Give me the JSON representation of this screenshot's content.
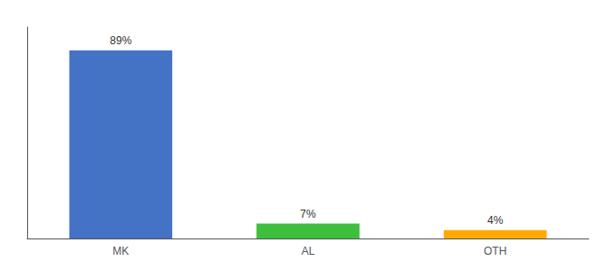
{
  "chart_data": {
    "type": "bar",
    "categories": [
      "MK",
      "AL",
      "OTH"
    ],
    "values": [
      89,
      7,
      4
    ],
    "value_labels": [
      "89%",
      "7%",
      "4%"
    ],
    "colors": [
      "#4472c4",
      "#3dbf3d",
      "#ffaa00"
    ],
    "ylim": [
      0,
      100
    ],
    "grid": false,
    "data_labels": true,
    "tick_labels": "x"
  }
}
